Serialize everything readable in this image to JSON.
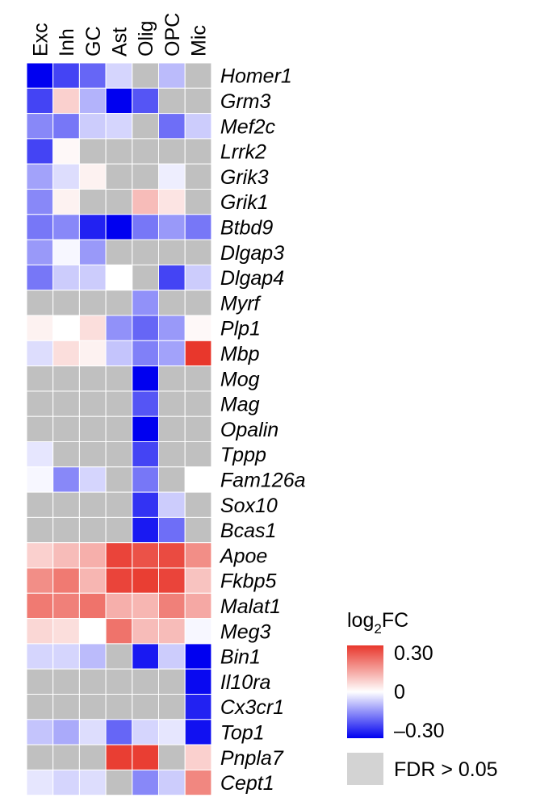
{
  "chart_data": {
    "type": "heatmap",
    "columns": [
      "Exc",
      "Inh",
      "GC",
      "Ast",
      "Olig",
      "OPC",
      "Mic"
    ],
    "rows": [
      "Homer1",
      "Grm3",
      "Mef2c",
      "Lrrk2",
      "Grik3",
      "Grik1",
      "Btbd9",
      "Dlgap3",
      "Dlgap4",
      "Myrf",
      "Plp1",
      "Mbp",
      "Mog",
      "Mag",
      "Opalin",
      "Tppp",
      "Fam126a",
      "Sox10",
      "Bcas1",
      "Apoe",
      "Fkbp5",
      "Malat1",
      "Meg3",
      "Bin1",
      "Il10ra",
      "Cx3cr1",
      "Top1",
      "Pnpla7",
      "Cept1"
    ],
    "values": [
      [
        -0.3,
        -0.22,
        -0.18,
        -0.05,
        null,
        -0.08,
        null
      ],
      [
        -0.22,
        0.07,
        -0.09,
        -0.3,
        -0.2,
        null,
        null
      ],
      [
        -0.14,
        -0.16,
        -0.06,
        -0.05,
        null,
        -0.17,
        -0.06
      ],
      [
        -0.22,
        0.01,
        null,
        null,
        null,
        null,
        null
      ],
      [
        -0.11,
        -0.04,
        0.02,
        null,
        null,
        -0.02,
        null
      ],
      [
        -0.14,
        0.02,
        null,
        null,
        0.1,
        0.04,
        null
      ],
      [
        -0.16,
        -0.14,
        -0.26,
        -0.3,
        -0.16,
        -0.12,
        -0.16
      ],
      [
        -0.12,
        -0.01,
        -0.12,
        null,
        null,
        null,
        null
      ],
      [
        -0.16,
        -0.06,
        -0.06,
        0.0,
        null,
        -0.22,
        -0.06
      ],
      [
        null,
        null,
        null,
        null,
        -0.13,
        null,
        null
      ],
      [
        0.02,
        0.0,
        0.05,
        -0.13,
        -0.18,
        -0.12,
        0.01
      ],
      [
        -0.04,
        0.05,
        0.02,
        -0.07,
        -0.15,
        -0.11,
        0.3
      ],
      [
        null,
        null,
        null,
        null,
        -0.3,
        null,
        null
      ],
      [
        null,
        null,
        null,
        null,
        -0.2,
        null,
        null
      ],
      [
        null,
        null,
        null,
        null,
        -0.3,
        null,
        null
      ],
      [
        -0.03,
        null,
        null,
        null,
        -0.22,
        null,
        null
      ],
      [
        -0.01,
        -0.14,
        -0.05,
        null,
        -0.16,
        null,
        0.0
      ],
      [
        null,
        null,
        null,
        null,
        -0.24,
        -0.06,
        null
      ],
      [
        null,
        null,
        null,
        null,
        -0.27,
        -0.17,
        null
      ],
      [
        0.07,
        0.1,
        0.12,
        0.28,
        0.26,
        0.27,
        0.17
      ],
      [
        0.17,
        0.2,
        0.11,
        0.28,
        0.29,
        0.28,
        0.09
      ],
      [
        0.2,
        0.19,
        0.21,
        0.12,
        0.11,
        0.19,
        0.13
      ],
      [
        0.06,
        0.05,
        0.0,
        0.21,
        0.1,
        0.1,
        -0.01
      ],
      [
        -0.05,
        -0.05,
        -0.08,
        null,
        -0.27,
        -0.06,
        -0.3
      ],
      [
        null,
        null,
        null,
        null,
        null,
        null,
        -0.29
      ],
      [
        null,
        null,
        null,
        null,
        null,
        null,
        -0.26
      ],
      [
        -0.07,
        -0.1,
        -0.04,
        -0.18,
        -0.05,
        -0.03,
        -0.28
      ],
      [
        null,
        null,
        null,
        0.29,
        0.29,
        null,
        0.07
      ],
      [
        -0.03,
        -0.05,
        -0.04,
        null,
        -0.14,
        -0.06,
        0.18
      ]
    ],
    "scale": {
      "min": -0.3,
      "max": 0.3,
      "low_color": "#0000f0",
      "mid_color": "#ffffff",
      "high_color": "#e8372c",
      "na_color": "#c0c0c0"
    },
    "legend": {
      "title_main": "log",
      "title_sub": "2",
      "title_tail": "FC",
      "ticks": [
        "0.30",
        "0",
        "–0.30"
      ],
      "na_label": "FDR > 0.05",
      "na_swatch_color": "#d3d3d3",
      "placement": "bottom-right"
    }
  }
}
